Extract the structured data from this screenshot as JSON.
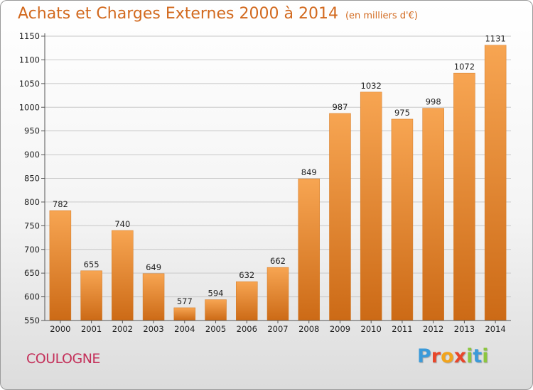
{
  "header": {
    "title": "Achats et Charges Externes 2000 à 2014",
    "subtitle": "(en milliers d'€)"
  },
  "commune": "COULOGNE",
  "logo": {
    "letters": [
      {
        "ch": "P",
        "color": "#3b9ad9"
      },
      {
        "ch": "r",
        "color": "#e8462a"
      },
      {
        "ch": "o",
        "color": "#f2a41c"
      },
      {
        "ch": "x",
        "color": "#e8462a"
      },
      {
        "ch": "i",
        "color": "#8cc63f"
      },
      {
        "ch": "t",
        "color": "#3b9ad9"
      },
      {
        "ch": "i",
        "color": "#8cc63f"
      }
    ]
  },
  "chart_data": {
    "type": "bar",
    "title": "Achats et Charges Externes 2000 à 2014",
    "subtitle": "(en milliers d'€)",
    "categories": [
      "2000",
      "2001",
      "2002",
      "2003",
      "2004",
      "2005",
      "2006",
      "2007",
      "2008",
      "2009",
      "2010",
      "2011",
      "2012",
      "2013",
      "2014"
    ],
    "values": [
      782,
      655,
      740,
      649,
      577,
      594,
      632,
      662,
      849,
      987,
      1032,
      975,
      998,
      1072,
      1131
    ],
    "ylim": [
      550,
      1150
    ],
    "yticks": [
      550,
      600,
      650,
      700,
      750,
      800,
      850,
      900,
      950,
      1000,
      1050,
      1100,
      1150
    ],
    "grid": true,
    "bar_color": "#f0932e"
  }
}
